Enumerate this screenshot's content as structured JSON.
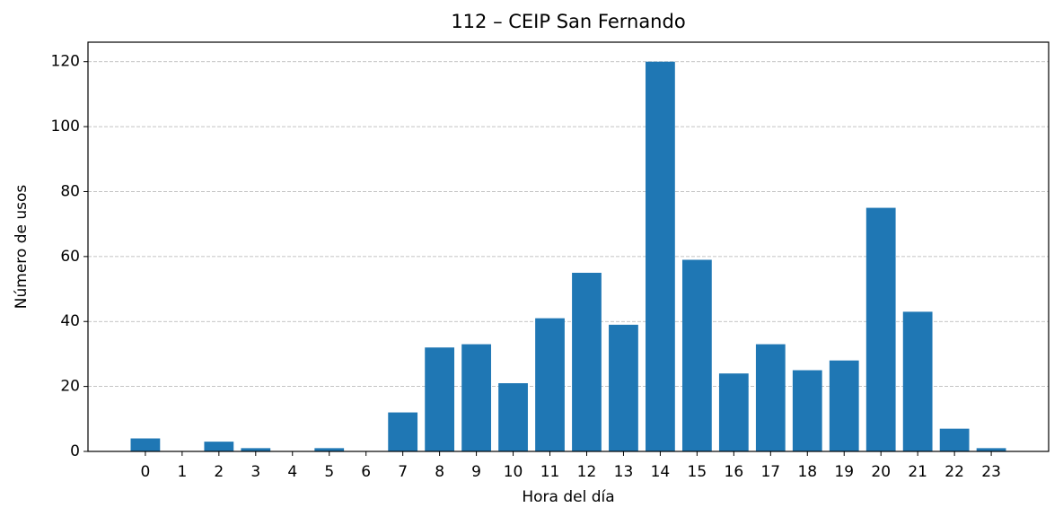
{
  "chart_data": {
    "type": "bar",
    "title": "112 – CEIP San Fernando",
    "x_label": "Hora del día",
    "y_label": "Número de usos",
    "x": [
      0,
      1,
      2,
      3,
      4,
      5,
      6,
      7,
      8,
      9,
      10,
      11,
      12,
      13,
      14,
      15,
      16,
      17,
      18,
      19,
      20,
      21,
      22,
      23
    ],
    "values": [
      4,
      0,
      3,
      1,
      0,
      1,
      0,
      12,
      32,
      33,
      21,
      41,
      55,
      39,
      120,
      59,
      24,
      33,
      25,
      28,
      75,
      43,
      7,
      1
    ],
    "color": "#1f77b4",
    "xlim": [
      -1.56,
      24.56
    ],
    "xticks": [
      0,
      1,
      2,
      3,
      4,
      5,
      6,
      7,
      8,
      9,
      10,
      11,
      12,
      13,
      14,
      15,
      16,
      17,
      18,
      19,
      20,
      21,
      22,
      23
    ],
    "ylim": [
      0,
      126
    ],
    "yticks": [
      0,
      20,
      40,
      60,
      80,
      100,
      120
    ],
    "grid": true
  }
}
